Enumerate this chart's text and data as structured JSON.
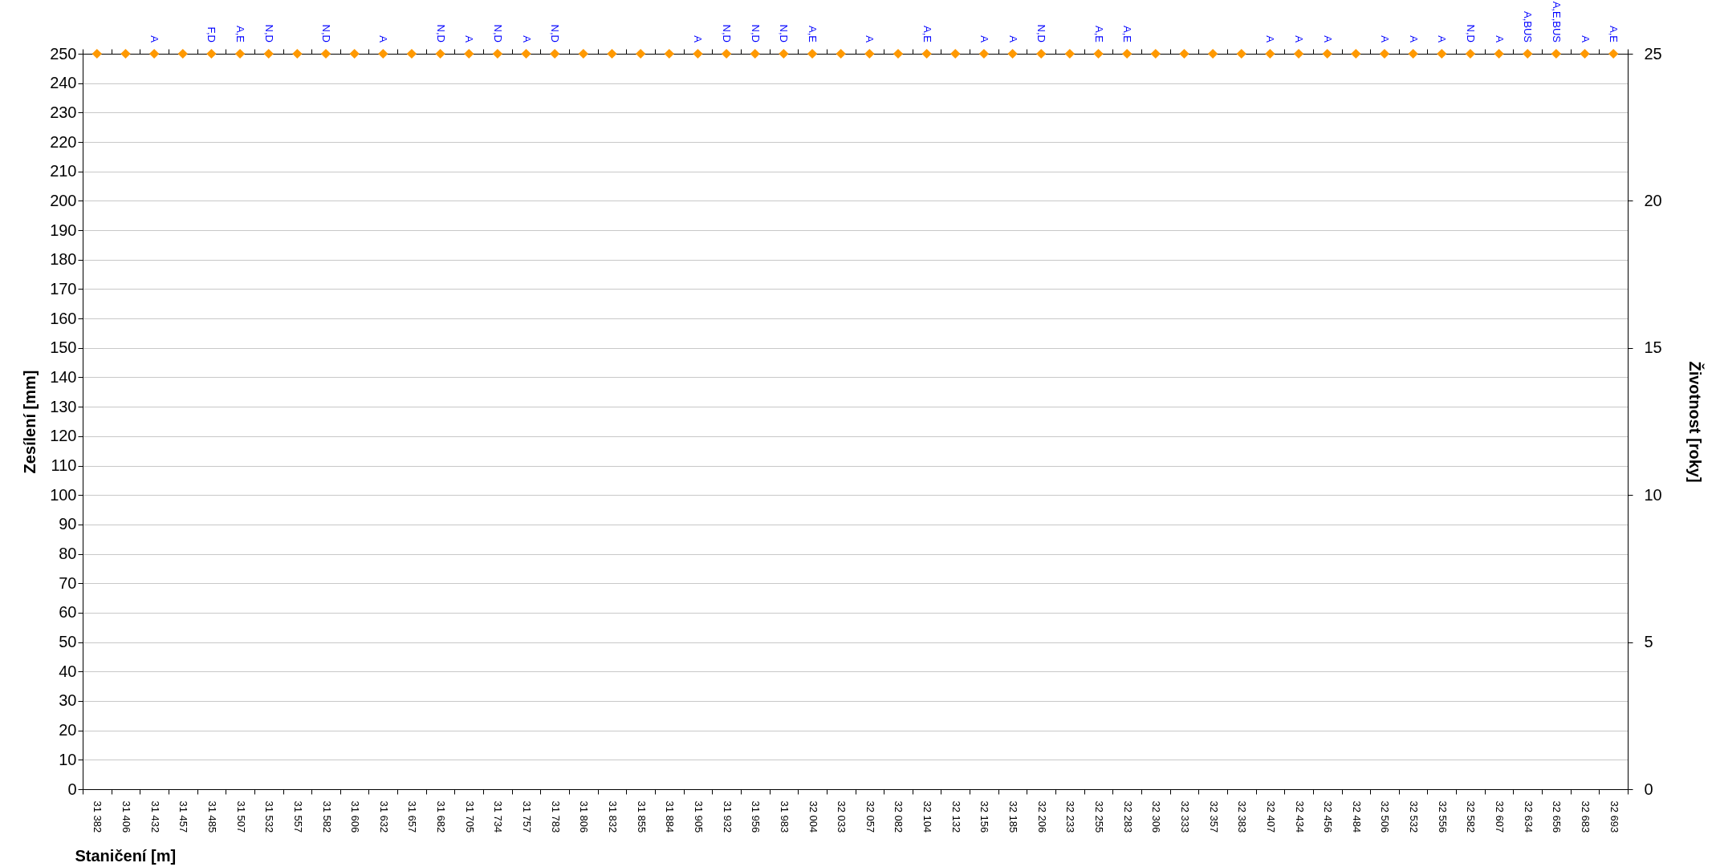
{
  "chart_data": {
    "type": "scatter",
    "xlabel": "Staničení [m]",
    "ylabel": "Zesílení [mm]",
    "y2label": "Životnost [roky]",
    "categories": [
      "31 382",
      "31 406",
      "31 432",
      "31 457",
      "31 485",
      "31 507",
      "31 532",
      "31 557",
      "31 582",
      "31 606",
      "31 632",
      "31 657",
      "31 682",
      "31 705",
      "31 734",
      "31 757",
      "31 783",
      "31 806",
      "31 832",
      "31 855",
      "31 884",
      "31 905",
      "31 932",
      "31 956",
      "31 983",
      "32 004",
      "32 033",
      "32 057",
      "32 082",
      "32 104",
      "32 132",
      "32 156",
      "32 185",
      "32 206",
      "32 233",
      "32 255",
      "32 283",
      "32 306",
      "32 333",
      "32 357",
      "32 383",
      "32 407",
      "32 434",
      "32 456",
      "32 484",
      "32 506",
      "32 532",
      "32 556",
      "32 582",
      "32 607",
      "32 634",
      "32 656",
      "32 683",
      "32 693"
    ],
    "series": [
      {
        "color": "#ff9900",
        "values": [
          250,
          250,
          250,
          250,
          250,
          250,
          250,
          250,
          250,
          250,
          250,
          250,
          250,
          250,
          250,
          250,
          250,
          250,
          250,
          250,
          250,
          250,
          250,
          250,
          250,
          250,
          250,
          250,
          250,
          250,
          250,
          250,
          250,
          250,
          250,
          250,
          250,
          250,
          250,
          250,
          250,
          250,
          250,
          250,
          250,
          250,
          250,
          250,
          250,
          250,
          250,
          250,
          250,
          250
        ],
        "value_labels": [
          null,
          null,
          "A",
          null,
          "F,D",
          "A,E",
          "N,D",
          null,
          "N,D",
          null,
          "A",
          null,
          "N,D",
          "A",
          "N,D",
          "A",
          "N,D",
          null,
          null,
          null,
          null,
          "A",
          "N,D",
          "N,D",
          "N,D",
          "A,E",
          null,
          "A",
          null,
          "A,E",
          null,
          "A",
          "A",
          "N,D",
          null,
          "A,E",
          "A,E",
          null,
          null,
          null,
          null,
          "A",
          "A",
          "A",
          null,
          "A",
          "A",
          "A",
          "N,D",
          "A",
          "A,BUS",
          "A,E,BUS",
          "A",
          "A,E"
        ]
      }
    ],
    "ylim": [
      0,
      250
    ],
    "yticks": [
      0,
      10,
      20,
      30,
      40,
      50,
      60,
      70,
      80,
      90,
      100,
      110,
      120,
      130,
      140,
      150,
      160,
      170,
      180,
      190,
      200,
      210,
      220,
      230,
      240,
      250
    ],
    "y2lim": [
      0,
      25
    ],
    "y2ticks": [
      0,
      5,
      10,
      15,
      20,
      25
    ],
    "grid": "y",
    "marker": "diamond",
    "legend": false
  }
}
